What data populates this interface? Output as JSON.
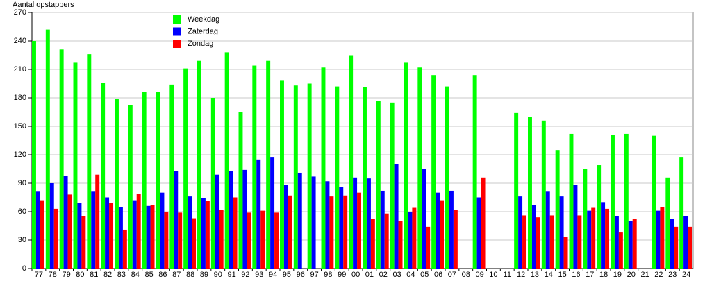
{
  "chart_data": {
    "type": "bar",
    "y_label": "Aantal opstappers",
    "categories": [
      "77",
      "78",
      "79",
      "80",
      "81",
      "82",
      "83",
      "84",
      "85",
      "86",
      "87",
      "88",
      "89",
      "90",
      "91",
      "92",
      "93",
      "94",
      "95",
      "96",
      "97",
      "98",
      "99",
      "00",
      "01",
      "02",
      "03",
      "04",
      "05",
      "06",
      "07",
      "08",
      "09",
      "10",
      "11",
      "12",
      "13",
      "14",
      "15",
      "16",
      "17",
      "18",
      "19",
      "20",
      "21",
      "22",
      "23",
      "24"
    ],
    "series": [
      {
        "name": "Weekdag",
        "color": "#00ff00",
        "values": [
          240,
          252,
          231,
          217,
          226,
          196,
          179,
          172,
          186,
          186,
          194,
          211,
          219,
          180,
          228,
          165,
          214,
          219,
          198,
          193,
          195,
          212,
          192,
          225,
          191,
          177,
          175,
          217,
          212,
          204,
          192,
          null,
          204,
          null,
          null,
          164,
          160,
          156,
          125,
          142,
          105,
          109,
          141,
          142,
          null,
          140,
          96,
          117
        ]
      },
      {
        "name": "Zaterdag",
        "color": "#0000ff",
        "values": [
          81,
          90,
          98,
          69,
          81,
          75,
          65,
          72,
          66,
          80,
          103,
          76,
          74,
          99,
          103,
          104,
          115,
          117,
          88,
          101,
          97,
          92,
          86,
          96,
          95,
          82,
          110,
          60,
          105,
          80,
          82,
          null,
          75,
          null,
          null,
          76,
          67,
          81,
          76,
          88,
          61,
          70,
          55,
          50,
          null,
          61,
          52,
          55
        ]
      },
      {
        "name": "Zondag",
        "color": "#ff0000",
        "values": [
          72,
          63,
          78,
          55,
          99,
          69,
          41,
          79,
          67,
          60,
          59,
          53,
          71,
          62,
          75,
          59,
          61,
          59,
          77,
          null,
          null,
          76,
          77,
          80,
          52,
          58,
          50,
          64,
          44,
          72,
          62,
          null,
          96,
          null,
          null,
          56,
          54,
          56,
          33,
          56,
          64,
          63,
          38,
          52,
          null,
          65,
          44,
          44
        ]
      }
    ],
    "ylim": [
      0,
      270
    ],
    "yticks": [
      0,
      30,
      60,
      90,
      120,
      150,
      180,
      210,
      240,
      270
    ],
    "grid": true
  }
}
